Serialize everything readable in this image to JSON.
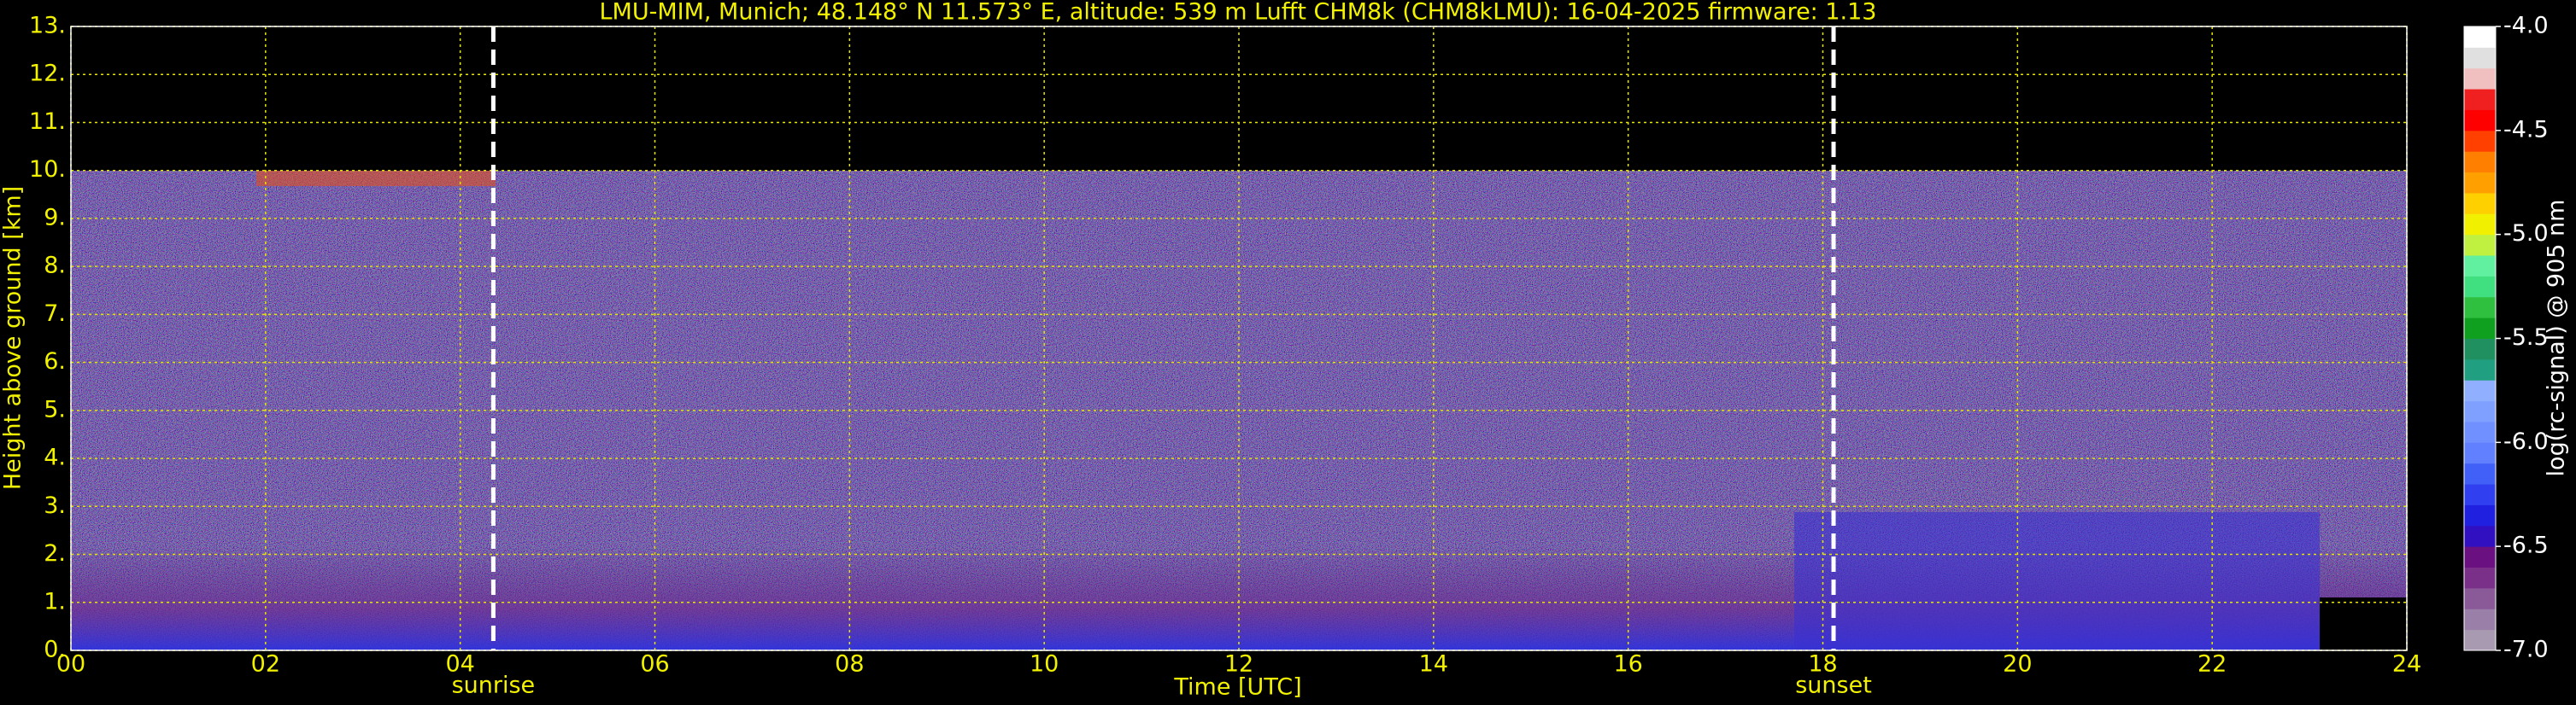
{
  "chart_data": {
    "type": "heatmap",
    "title": "LMU-MIM, Munich; 48.148° N 11.573° E, altitude: 539 m    Lufft CHM8k (CHM8kLMU): 16-04-2025    firmware: 1.13",
    "x_label": "Time [UTC]",
    "y_label": "Height above ground [km]",
    "xlim": [
      0,
      24
    ],
    "xticks": [
      {
        "value": 0,
        "label": "00"
      },
      {
        "value": 2,
        "label": "02"
      },
      {
        "value": 4,
        "label": "04"
      },
      {
        "value": 6,
        "label": "06"
      },
      {
        "value": 8,
        "label": "08"
      },
      10,
      12,
      14,
      16,
      18,
      20,
      22,
      24
    ],
    "ylim": [
      0,
      13
    ],
    "yticks": [
      {
        "value": 0,
        "label": "0."
      },
      {
        "value": 1,
        "label": "1."
      },
      {
        "value": 2,
        "label": "2."
      },
      {
        "value": 3,
        "label": "3."
      },
      {
        "value": 4,
        "label": "4."
      },
      {
        "value": 5,
        "label": "5."
      },
      {
        "value": 6,
        "label": "6."
      },
      {
        "value": 7,
        "label": "7."
      },
      {
        "value": 8,
        "label": "8."
      },
      {
        "value": 9,
        "label": "9."
      },
      {
        "value": 10,
        "label": "10."
      },
      {
        "value": 11,
        "label": "11."
      },
      {
        "value": 12,
        "label": "12."
      },
      {
        "value": 13,
        "label": "13."
      }
    ],
    "grid": true,
    "grid_color": "#e6e600",
    "text_color": "#f2f200",
    "annotations": [
      {
        "label": "sunrise",
        "x": 4.34
      },
      {
        "label": "sunset",
        "x": 18.11
      }
    ],
    "colorbar": {
      "label": "log(rc-signal) @ 905 nm",
      "clim": [
        -7,
        -4
      ],
      "ticks": [
        {
          "value": -4,
          "label": "-4.0"
        },
        -4.5,
        {
          "value": -5,
          "label": "-5.0"
        },
        -5.5,
        {
          "value": -6,
          "label": "-6.0"
        },
        -6.5,
        {
          "value": -7,
          "label": "-7.0"
        }
      ],
      "colors": [
        "#a89ab0",
        "#9a80a8",
        "#8a5a98",
        "#7a3088",
        "#6a1080",
        "#3010c0",
        "#2020e0",
        "#3040f0",
        "#4060f8",
        "#6080ff",
        "#7090ff",
        "#80a0ff",
        "#90b0ff",
        "#20a080",
        "#209060",
        "#10a020",
        "#30c040",
        "#40e080",
        "#60f0a0",
        "#c0f040",
        "#f0f000",
        "#ffd000",
        "#ffa000",
        "#ff8000",
        "#ff4000",
        "#ff0000",
        "#f02020",
        "#f0c0c0",
        "#e0e0e0",
        "#ffffff"
      ]
    }
  }
}
